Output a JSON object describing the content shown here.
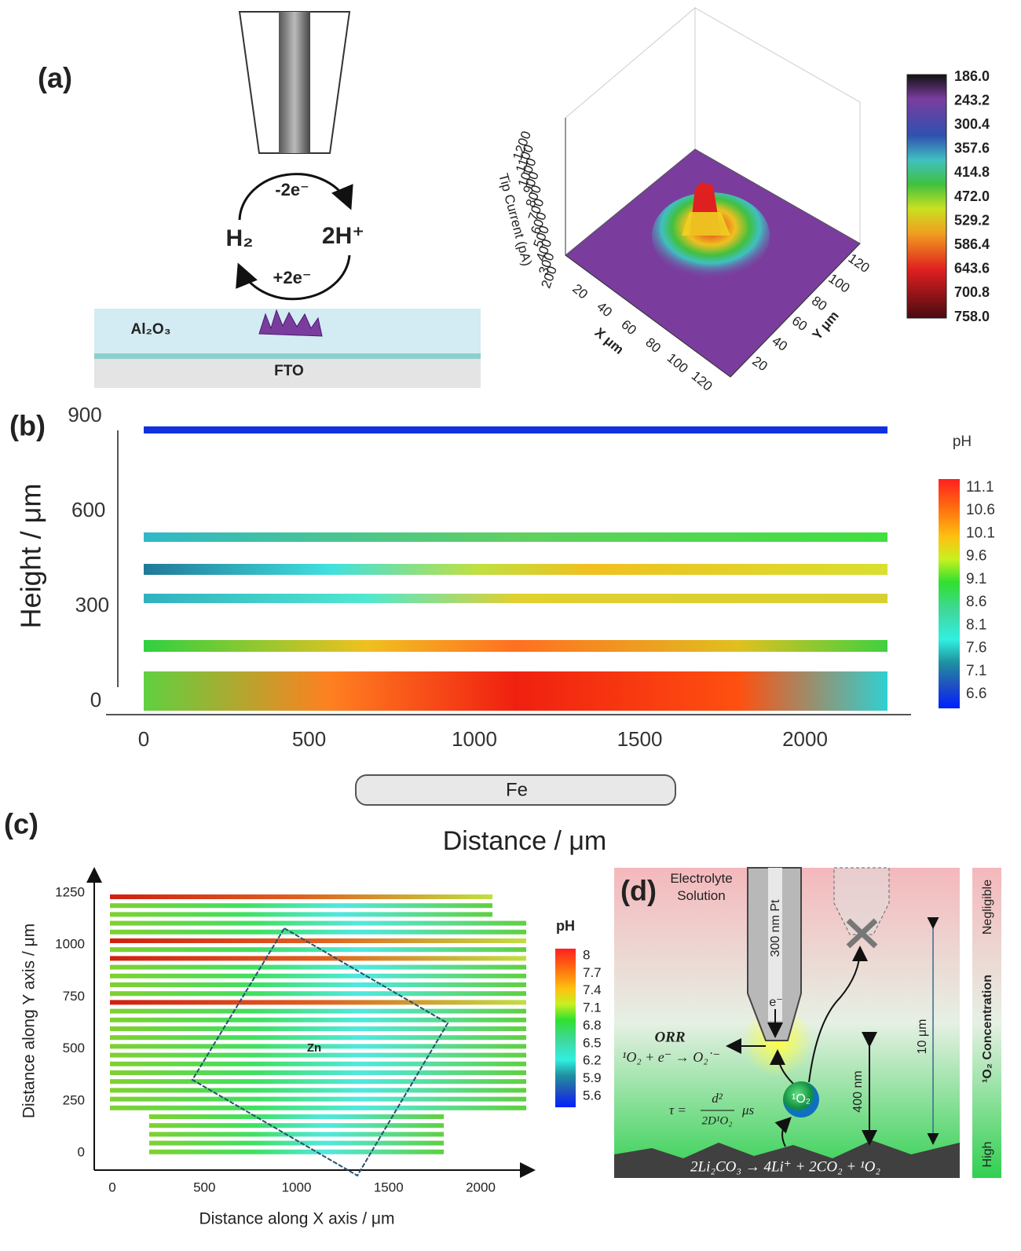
{
  "panels": {
    "a": {
      "label": "(a)",
      "scheme": {
        "oxidation": "-2e⁻",
        "reduction": "+2e⁻",
        "reactant": "H₂",
        "product": "2H⁺",
        "layer": "Al₂O₃",
        "substrate": "FTO"
      },
      "plot": {
        "z_label": "Tip Current (pA)",
        "z_ticks": [
          "200",
          "300",
          "400",
          "500",
          "600",
          "700",
          "800",
          "900",
          "1000",
          "1100",
          "1200"
        ],
        "x_label": "X μm",
        "x_ticks": [
          "20",
          "40",
          "60",
          "80",
          "100",
          "120"
        ],
        "y_label": "Y μm",
        "y_ticks": [
          "20",
          "40",
          "60",
          "80",
          "100",
          "120"
        ],
        "colorbar_ticks": [
          "186.0",
          "243.2",
          "300.4",
          "357.6",
          "414.8",
          "472.0",
          "529.2",
          "586.4",
          "643.6",
          "700.8",
          "758.0"
        ]
      }
    },
    "b": {
      "label": "(b)",
      "y_label": "Height / μm",
      "y_ticks": [
        "0",
        "300",
        "600",
        "900"
      ],
      "x_label": "Distance / μm",
      "x_ticks": [
        "0",
        "500",
        "1000",
        "1500",
        "2000"
      ],
      "sample": "Fe",
      "colorbar_title": "pH",
      "colorbar_ticks": [
        "11.1",
        "10.6",
        "10.1",
        "9.6",
        "9.1",
        "8.6",
        "8.1",
        "7.6",
        "7.1",
        "6.6"
      ]
    },
    "c": {
      "label": "(c)",
      "y_label": "Distance along Y axis / μm",
      "y_ticks": [
        "0",
        "250",
        "500",
        "750",
        "1000",
        "1250"
      ],
      "x_label": "Distance along X axis / μm",
      "x_ticks": [
        "0",
        "500",
        "1000",
        "1500",
        "2000"
      ],
      "sample": "Zn",
      "colorbar_title": "pH",
      "colorbar_ticks": [
        "8",
        "7.7",
        "7.4",
        "7.1",
        "6.8",
        "6.5",
        "6.2",
        "5.9",
        "5.6"
      ]
    },
    "d": {
      "label": "(d)",
      "medium": "Electrolyte Solution",
      "tip": "300 nm Pt",
      "electron": "e⁻",
      "orr": "ORR",
      "orr_equation": "¹O₂ + e⁻ → O₂˙⁻",
      "species": "¹O₂",
      "lifetime": {
        "lhs": "τ =",
        "numerator": "d²",
        "denominator": "2D¹O₂",
        "unit": "μs"
      },
      "distance_far": "10 μm",
      "distance_near": "400 nm",
      "reaction": "2Li₂CO₃ → 4Li⁺ + 2CO₂ + ¹O₂",
      "scale": {
        "top": "Negligible",
        "middle": "¹O₂ Concentration",
        "bottom": "High"
      }
    }
  }
}
